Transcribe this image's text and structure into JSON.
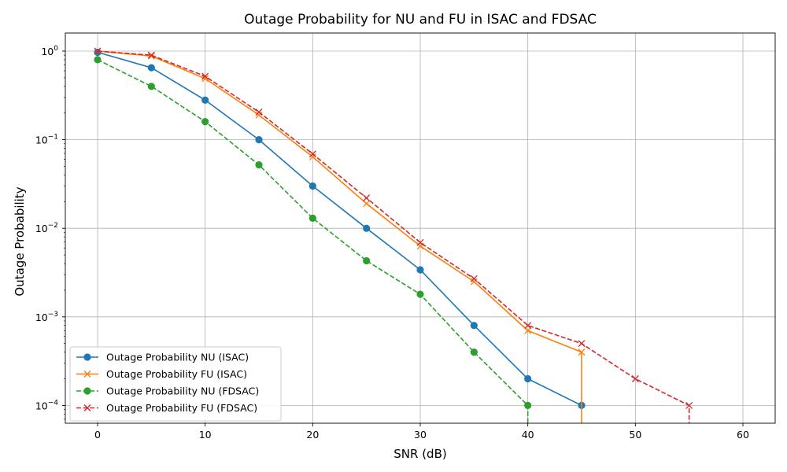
{
  "chart_data": {
    "type": "line",
    "title": "Outage Probability for NU and FU in ISAC and FDSAC",
    "xlabel": "SNR (dB)",
    "ylabel": "Outage Probability",
    "xlim": [
      -3,
      63
    ],
    "ylim": [
      6.3e-05,
      1.6
    ],
    "yscale": "log",
    "grid": true,
    "legend_position": "lower-left",
    "x_ticks": [
      0,
      10,
      20,
      30,
      40,
      50,
      60
    ],
    "y_ticks": [
      {
        "value": 0.0001,
        "base": "10",
        "exp": "−4"
      },
      {
        "value": 0.001,
        "base": "10",
        "exp": "−3"
      },
      {
        "value": 0.01,
        "base": "10",
        "exp": "−2"
      },
      {
        "value": 0.1,
        "base": "10",
        "exp": "−1"
      },
      {
        "value": 1,
        "base": "10",
        "exp": "0"
      }
    ],
    "series": [
      {
        "name": "Outage Probability NU (ISAC)",
        "color": "#1f77b4",
        "marker": "circle",
        "linestyle": "solid",
        "x": [
          0,
          5,
          10,
          15,
          20,
          25,
          30,
          35,
          40,
          45
        ],
        "y": [
          0.97,
          0.65,
          0.28,
          0.1,
          0.03,
          0.01,
          0.0034,
          0.0008,
          0.0002,
          0.0001
        ],
        "drop_after_last": false
      },
      {
        "name": "Outage Probability FU (ISAC)",
        "color": "#ff7f0e",
        "marker": "x",
        "linestyle": "solid",
        "x": [
          0,
          5,
          10,
          15,
          20,
          25,
          30,
          35,
          40,
          45
        ],
        "y": [
          1.0,
          0.88,
          0.49,
          0.19,
          0.064,
          0.019,
          0.0063,
          0.0025,
          0.0007,
          0.0004
        ],
        "drop_after_last": true
      },
      {
        "name": "Outage Probability NU (FDSAC)",
        "color": "#2ca02c",
        "marker": "circle",
        "linestyle": "dashed",
        "x": [
          0,
          5,
          10,
          15,
          20,
          25,
          30,
          35,
          40
        ],
        "y": [
          0.8,
          0.4,
          0.16,
          0.052,
          0.013,
          0.0043,
          0.0018,
          0.0004,
          0.0001
        ],
        "drop_after_last": true
      },
      {
        "name": "Outage Probability FU (FDSAC)",
        "color": "#d62728",
        "marker": "x",
        "linestyle": "dashed",
        "x": [
          0,
          5,
          10,
          15,
          20,
          25,
          30,
          35,
          40,
          45,
          50,
          55
        ],
        "y": [
          1.0,
          0.9,
          0.52,
          0.205,
          0.069,
          0.022,
          0.0069,
          0.0027,
          0.0008,
          0.0005,
          0.0002,
          0.0001
        ],
        "drop_after_last": true
      }
    ]
  }
}
